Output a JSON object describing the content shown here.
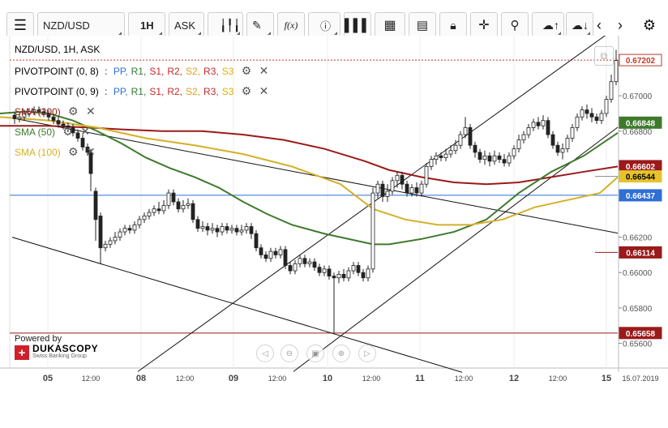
{
  "toolbar": {
    "instrument": "NZD/USD",
    "timeframe": "1H",
    "side": "ASK"
  },
  "header": {
    "title": "NZD/USD, 1H, ASK"
  },
  "indicators": [
    {
      "name": "PIVOTPOINT (0, 8)",
      "levels": [
        "PP",
        "R1",
        "S1",
        "R2",
        "S2",
        "R3",
        "S3"
      ]
    },
    {
      "name": "PIVOTPOINT (0, 9)",
      "levels": [
        "PP",
        "R1",
        "S1",
        "R2",
        "S2",
        "R3",
        "S3"
      ]
    },
    {
      "name": "SMA (200)",
      "color": "#9b1a1a"
    },
    {
      "name": "SMA (50)",
      "color": "#3f7a2c"
    },
    {
      "name": "SMA (100)",
      "color": "#d4b02a"
    }
  ],
  "level_colors": {
    "PP": "#2f6fd6",
    "R1": "#2e7d32",
    "S1": "#c62828",
    "R2": "#c62828",
    "S2": "#e0a020",
    "R3": "#c62828",
    "S3": "#e0b000"
  },
  "branding": {
    "powered_by": "Powered by",
    "name": "DUKASCOPY",
    "tagline": "Swiss Banking Group"
  },
  "chart_data": {
    "type": "candlestick",
    "title": "NZD/USD, 1H, ASK",
    "ylim": [
      0.6546,
      0.6734
    ],
    "y_ticks": [
      0.67,
      0.668,
      0.6654,
      0.662,
      0.66,
      0.658,
      0.656
    ],
    "y_tick_labels": [
      "0.67000",
      "0.66800",
      "0.66540",
      "0.66200",
      "0.66000",
      "0.65800",
      "0.65600"
    ],
    "x_labels": [
      "05",
      "12:00",
      "08",
      "12:00",
      "09",
      "12:00",
      "10",
      "12:00",
      "11",
      "12:00",
      "12",
      "12:00",
      "15",
      "15.07.2019"
    ],
    "price_tags": [
      {
        "label": "0.67202",
        "value": 0.67202,
        "bg": "#ffffff",
        "fg": "#c0392b",
        "border": "#c0392b"
      },
      {
        "label": "0.66848",
        "value": 0.66848,
        "bg": "#3f7a2c",
        "fg": "#ffffff"
      },
      {
        "label": "0.66602",
        "value": 0.66602,
        "bg": "#9b1a1a",
        "fg": "#ffffff"
      },
      {
        "label": "0.66544",
        "value": 0.66544,
        "bg": "#e6c32e",
        "fg": "#000000"
      },
      {
        "label": "0.66437",
        "value": 0.66437,
        "bg": "#2f6fd6",
        "fg": "#ffffff"
      },
      {
        "label": "0.66114",
        "value": 0.66114,
        "bg": "#9b1a1a",
        "fg": "#ffffff"
      },
      {
        "label": "0.65658",
        "value": 0.65658,
        "bg": "#9b1a1a",
        "fg": "#ffffff"
      }
    ],
    "horizontal_lines": [
      {
        "value": 0.67202,
        "color": "#c0392b",
        "style": "dotted"
      },
      {
        "value": 0.66437,
        "color": "#2f6fd6",
        "style": "solid"
      },
      {
        "value": 0.65658,
        "color": "#9b1a1a",
        "style": "solid"
      }
    ],
    "series": [
      {
        "name": "SMA (200)",
        "color": "#9b1a1a",
        "points": [
          [
            0,
            0.6683
          ],
          [
            60,
            0.6683
          ],
          [
            110,
            0.6682
          ],
          [
            150,
            0.6681
          ],
          [
            200,
            0.668
          ],
          [
            250,
            0.668
          ],
          [
            300,
            0.6678
          ],
          [
            350,
            0.6675
          ],
          [
            400,
            0.667
          ],
          [
            450,
            0.6663
          ],
          [
            480,
            0.6658
          ],
          [
            520,
            0.6654
          ],
          [
            560,
            0.6651
          ],
          [
            600,
            0.665
          ],
          [
            640,
            0.6651
          ],
          [
            680,
            0.6654
          ],
          [
            720,
            0.6657
          ],
          [
            762,
            0.666
          ]
        ]
      },
      {
        "name": "SMA (50)",
        "color": "#3f7a2c",
        "points": [
          [
            0,
            0.669
          ],
          [
            30,
            0.6691
          ],
          [
            60,
            0.669
          ],
          [
            90,
            0.6686
          ],
          [
            120,
            0.668
          ],
          [
            150,
            0.6673
          ],
          [
            180,
            0.6665
          ],
          [
            210,
            0.6659
          ],
          [
            240,
            0.6654
          ],
          [
            270,
            0.6648
          ],
          [
            300,
            0.664
          ],
          [
            330,
            0.6633
          ],
          [
            360,
            0.6627
          ],
          [
            400,
            0.6622
          ],
          [
            440,
            0.6618
          ],
          [
            460,
            0.6616
          ],
          [
            480,
            0.6616
          ],
          [
            520,
            0.6619
          ],
          [
            560,
            0.6623
          ],
          [
            600,
            0.663
          ],
          [
            640,
            0.6645
          ],
          [
            680,
            0.6657
          ],
          [
            720,
            0.6666
          ],
          [
            762,
            0.6679
          ]
        ]
      },
      {
        "name": "SMA (100)",
        "color": "#d4b02a",
        "points": [
          [
            0,
            0.6688
          ],
          [
            60,
            0.6686
          ],
          [
            120,
            0.6682
          ],
          [
            180,
            0.6676
          ],
          [
            240,
            0.6672
          ],
          [
            300,
            0.6667
          ],
          [
            360,
            0.666
          ],
          [
            420,
            0.665
          ],
          [
            460,
            0.6636
          ],
          [
            500,
            0.663
          ],
          [
            540,
            0.6627
          ],
          [
            580,
            0.6627
          ],
          [
            620,
            0.663
          ],
          [
            660,
            0.6637
          ],
          [
            700,
            0.6641
          ],
          [
            740,
            0.6645
          ],
          [
            762,
            0.6654
          ]
        ]
      }
    ],
    "trendlines": [
      {
        "x1": 15,
        "y1": 0.66874,
        "x2": 762,
        "y2": 0.66223
      },
      {
        "x1": 15,
        "y1": 0.662,
        "x2": 570,
        "y2": 0.65436
      },
      {
        "x1": 170,
        "y1": 0.6544,
        "x2": 762,
        "y2": 0.67392
      },
      {
        "x1": 362,
        "y1": 0.6544,
        "x2": 762,
        "y2": 0.66822
      }
    ],
    "candles": [
      [
        18,
        0.6689,
        0.6687,
        0.6691,
        0.6684
      ],
      [
        24,
        0.6687,
        0.6688,
        0.669,
        0.6685
      ],
      [
        30,
        0.6688,
        0.669,
        0.6692,
        0.6686
      ],
      [
        36,
        0.669,
        0.6691,
        0.6693,
        0.6688
      ],
      [
        42,
        0.6691,
        0.6692,
        0.6694,
        0.6689
      ],
      [
        48,
        0.6692,
        0.6691,
        0.6694,
        0.6689
      ],
      [
        54,
        0.6691,
        0.669,
        0.6693,
        0.6688
      ],
      [
        60,
        0.669,
        0.6688,
        0.6692,
        0.6686
      ],
      [
        66,
        0.6688,
        0.6686,
        0.669,
        0.6684
      ],
      [
        72,
        0.6686,
        0.6684,
        0.6688,
        0.6682
      ],
      [
        78,
        0.6684,
        0.6683,
        0.6686,
        0.6681
      ],
      [
        84,
        0.6683,
        0.6682,
        0.6685,
        0.668
      ],
      [
        90,
        0.6682,
        0.6679,
        0.6684,
        0.6677
      ],
      [
        96,
        0.6679,
        0.6676,
        0.6681,
        0.6674
      ],
      [
        102,
        0.6676,
        0.6671,
        0.6678,
        0.6669
      ],
      [
        108,
        0.6671,
        0.6668,
        0.6673,
        0.6666
      ],
      [
        112,
        0.6668,
        0.6656,
        0.667,
        0.6646
      ],
      [
        118,
        0.6646,
        0.663,
        0.6648,
        0.6618
      ],
      [
        124,
        0.6632,
        0.6614,
        0.6634,
        0.6605
      ],
      [
        130,
        0.6614,
        0.6616,
        0.6618,
        0.6612
      ],
      [
        136,
        0.6616,
        0.6618,
        0.662,
        0.6614
      ],
      [
        142,
        0.6618,
        0.662,
        0.6623,
        0.6616
      ],
      [
        148,
        0.662,
        0.6623,
        0.6625,
        0.6618
      ],
      [
        154,
        0.6623,
        0.6625,
        0.6627,
        0.6621
      ],
      [
        160,
        0.6625,
        0.6624,
        0.6627,
        0.6622
      ],
      [
        166,
        0.6624,
        0.6627,
        0.6629,
        0.6622
      ],
      [
        172,
        0.6627,
        0.663,
        0.6632,
        0.6625
      ],
      [
        178,
        0.663,
        0.6632,
        0.6634,
        0.6628
      ],
      [
        184,
        0.6632,
        0.6634,
        0.6636,
        0.663
      ],
      [
        190,
        0.6634,
        0.6636,
        0.6638,
        0.6632
      ],
      [
        196,
        0.6636,
        0.6635,
        0.664,
        0.6633
      ],
      [
        202,
        0.6635,
        0.6638,
        0.6641,
        0.6633
      ],
      [
        208,
        0.6638,
        0.6645,
        0.6647,
        0.6636
      ],
      [
        214,
        0.6645,
        0.664,
        0.6647,
        0.6638
      ],
      [
        220,
        0.664,
        0.6636,
        0.6642,
        0.6634
      ],
      [
        226,
        0.6636,
        0.6638,
        0.6641,
        0.6634
      ],
      [
        232,
        0.6638,
        0.6639,
        0.6642,
        0.6636
      ],
      [
        238,
        0.6639,
        0.663,
        0.6641,
        0.6628
      ],
      [
        244,
        0.663,
        0.6625,
        0.6632,
        0.6623
      ],
      [
        250,
        0.6625,
        0.6626,
        0.6629,
        0.6623
      ],
      [
        256,
        0.6626,
        0.6624,
        0.6628,
        0.6621
      ],
      [
        262,
        0.6624,
        0.6625,
        0.6628,
        0.6622
      ],
      [
        268,
        0.6625,
        0.6623,
        0.6627,
        0.662
      ],
      [
        274,
        0.6623,
        0.6626,
        0.6628,
        0.6621
      ],
      [
        280,
        0.6626,
        0.6624,
        0.6628,
        0.6622
      ],
      [
        286,
        0.6624,
        0.6625,
        0.6627,
        0.6622
      ],
      [
        292,
        0.6625,
        0.6623,
        0.6627,
        0.6621
      ],
      [
        298,
        0.6623,
        0.6624,
        0.6627,
        0.6621
      ],
      [
        304,
        0.6624,
        0.6626,
        0.6628,
        0.6622
      ],
      [
        310,
        0.6626,
        0.6622,
        0.6628,
        0.6619
      ],
      [
        316,
        0.6622,
        0.6614,
        0.6624,
        0.6612
      ],
      [
        322,
        0.6614,
        0.661,
        0.6616,
        0.6608
      ],
      [
        328,
        0.661,
        0.6608,
        0.6612,
        0.6606
      ],
      [
        334,
        0.6608,
        0.6612,
        0.6614,
        0.6606
      ],
      [
        340,
        0.6612,
        0.661,
        0.6614,
        0.6608
      ],
      [
        346,
        0.661,
        0.6613,
        0.6615,
        0.6608
      ],
      [
        352,
        0.6613,
        0.6604,
        0.6615,
        0.6602
      ],
      [
        358,
        0.6604,
        0.6601,
        0.6606,
        0.6599
      ],
      [
        364,
        0.6601,
        0.6605,
        0.6607,
        0.6599
      ],
      [
        370,
        0.6605,
        0.6608,
        0.661,
        0.6603
      ],
      [
        376,
        0.6608,
        0.6605,
        0.661,
        0.6603
      ],
      [
        382,
        0.6605,
        0.6606,
        0.6608,
        0.6603
      ],
      [
        388,
        0.6606,
        0.6603,
        0.6608,
        0.6601
      ],
      [
        394,
        0.6603,
        0.66,
        0.6605,
        0.6598
      ],
      [
        400,
        0.66,
        0.6602,
        0.6604,
        0.6598
      ],
      [
        406,
        0.6602,
        0.6598,
        0.6604,
        0.6596
      ],
      [
        412,
        0.6598,
        0.6597,
        0.66,
        0.6566
      ],
      [
        418,
        0.6597,
        0.6599,
        0.6601,
        0.6594
      ],
      [
        424,
        0.6599,
        0.6597,
        0.6602,
        0.6595
      ],
      [
        430,
        0.6597,
        0.6601,
        0.6603,
        0.6595
      ],
      [
        436,
        0.6601,
        0.6604,
        0.6606,
        0.6599
      ],
      [
        442,
        0.6604,
        0.66,
        0.6606,
        0.6598
      ],
      [
        448,
        0.66,
        0.6597,
        0.6602,
        0.6595
      ],
      [
        454,
        0.6597,
        0.6602,
        0.6604,
        0.6595
      ],
      [
        460,
        0.6602,
        0.6645,
        0.6648,
        0.66
      ],
      [
        466,
        0.6645,
        0.665,
        0.6652,
        0.6642
      ],
      [
        472,
        0.665,
        0.6643,
        0.6652,
        0.664
      ],
      [
        478,
        0.6643,
        0.6646,
        0.665,
        0.664
      ],
      [
        484,
        0.6646,
        0.6652,
        0.6654,
        0.6644
      ],
      [
        490,
        0.6652,
        0.6655,
        0.6657,
        0.6648
      ],
      [
        496,
        0.6655,
        0.665,
        0.6657,
        0.6647
      ],
      [
        502,
        0.665,
        0.6645,
        0.6652,
        0.6643
      ],
      [
        508,
        0.6645,
        0.6648,
        0.665,
        0.6643
      ],
      [
        514,
        0.6648,
        0.6645,
        0.6651,
        0.6643
      ],
      [
        520,
        0.6645,
        0.665,
        0.6652,
        0.6643
      ],
      [
        526,
        0.665,
        0.666,
        0.6662,
        0.6648
      ],
      [
        532,
        0.666,
        0.6664,
        0.6666,
        0.6658
      ],
      [
        538,
        0.6664,
        0.6666,
        0.6668,
        0.6661
      ],
      [
        544,
        0.6666,
        0.6665,
        0.6668,
        0.6663
      ],
      [
        550,
        0.6665,
        0.6667,
        0.667,
        0.6663
      ],
      [
        556,
        0.6667,
        0.6669,
        0.6672,
        0.6665
      ],
      [
        562,
        0.6669,
        0.6672,
        0.6675,
        0.6667
      ],
      [
        568,
        0.6672,
        0.6678,
        0.668,
        0.667
      ],
      [
        574,
        0.6678,
        0.6682,
        0.6688,
        0.6676
      ],
      [
        580,
        0.6682,
        0.6672,
        0.6684,
        0.667
      ],
      [
        586,
        0.6672,
        0.6668,
        0.6674,
        0.6665
      ],
      [
        592,
        0.6668,
        0.6664,
        0.667,
        0.6662
      ],
      [
        598,
        0.6664,
        0.6666,
        0.6669,
        0.6661
      ],
      [
        604,
        0.6666,
        0.6663,
        0.6668,
        0.666
      ],
      [
        610,
        0.6663,
        0.6666,
        0.6669,
        0.6661
      ],
      [
        616,
        0.6666,
        0.6664,
        0.6668,
        0.6662
      ],
      [
        622,
        0.6664,
        0.6662,
        0.6667,
        0.666
      ],
      [
        628,
        0.6662,
        0.6666,
        0.6668,
        0.666
      ],
      [
        634,
        0.6666,
        0.667,
        0.6672,
        0.6664
      ],
      [
        640,
        0.667,
        0.6675,
        0.6678,
        0.6668
      ],
      [
        646,
        0.6675,
        0.6678,
        0.668,
        0.6673
      ],
      [
        652,
        0.6678,
        0.6682,
        0.6684,
        0.6676
      ],
      [
        658,
        0.6682,
        0.6685,
        0.6687,
        0.668
      ],
      [
        664,
        0.6685,
        0.6683,
        0.6688,
        0.6681
      ],
      [
        670,
        0.6683,
        0.6686,
        0.6689,
        0.6681
      ],
      [
        676,
        0.6686,
        0.6678,
        0.6688,
        0.6676
      ],
      [
        682,
        0.6678,
        0.6672,
        0.668,
        0.667
      ],
      [
        688,
        0.6672,
        0.6668,
        0.6674,
        0.6666
      ],
      [
        694,
        0.6668,
        0.667,
        0.6673,
        0.6664
      ],
      [
        700,
        0.667,
        0.6676,
        0.6678,
        0.6668
      ],
      [
        706,
        0.6676,
        0.6682,
        0.6684,
        0.6674
      ],
      [
        712,
        0.6682,
        0.6688,
        0.669,
        0.668
      ],
      [
        718,
        0.6688,
        0.6692,
        0.6694,
        0.6686
      ],
      [
        724,
        0.6692,
        0.669,
        0.6695,
        0.6687
      ],
      [
        730,
        0.669,
        0.6688,
        0.6693,
        0.6685
      ],
      [
        736,
        0.6688,
        0.6686,
        0.669,
        0.6684
      ],
      [
        742,
        0.6686,
        0.669,
        0.6692,
        0.6684
      ],
      [
        748,
        0.669,
        0.6698,
        0.67,
        0.6688
      ],
      [
        754,
        0.6698,
        0.6708,
        0.6712,
        0.6696
      ],
      [
        760,
        0.6708,
        0.672,
        0.6726,
        0.6706
      ]
    ]
  }
}
